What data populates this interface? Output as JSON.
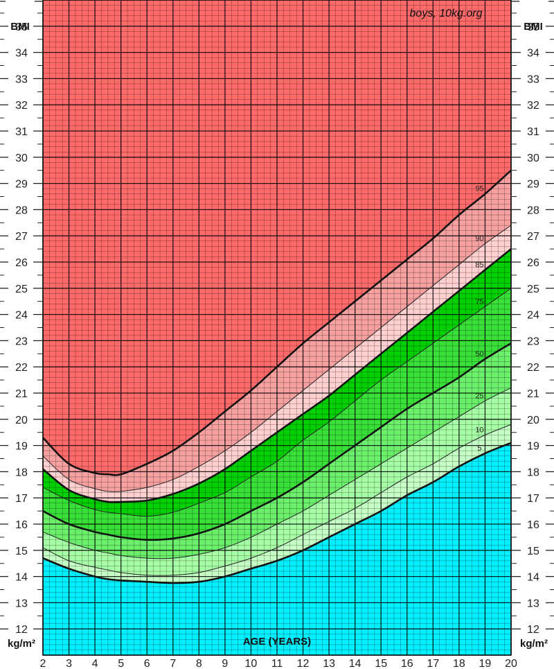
{
  "chart_data": {
    "type": "area",
    "watermark": "boys, 10kg.org",
    "ylabel_top": "BMI",
    "ylabel_bottom": "kg/m²",
    "xlabel": "AGE (YEARS)",
    "xlim": [
      2,
      20
    ],
    "ylim": [
      11,
      36
    ],
    "x_ticks": [
      "2",
      "3",
      "4",
      "5",
      "6",
      "7",
      "8",
      "9",
      "10",
      "11",
      "12",
      "13",
      "14",
      "15",
      "16",
      "17",
      "18",
      "19",
      "20"
    ],
    "y_ticks": [
      "12",
      "13",
      "14",
      "15",
      "16",
      "17",
      "18",
      "19",
      "20",
      "21",
      "22",
      "23",
      "24",
      "25",
      "26",
      "27",
      "28",
      "29",
      "30",
      "31",
      "32",
      "33",
      "34",
      "35"
    ],
    "grid": true,
    "x": [
      2,
      3,
      4,
      4.5,
      5,
      6,
      7,
      8,
      9,
      10,
      11,
      12,
      13,
      14,
      15,
      16,
      17,
      18,
      19,
      20
    ],
    "series": [
      {
        "name": "5",
        "values": [
          14.7,
          14.3,
          14.0,
          13.9,
          13.85,
          13.8,
          13.75,
          13.8,
          14.0,
          14.3,
          14.6,
          15.0,
          15.5,
          16.0,
          16.5,
          17.1,
          17.6,
          18.2,
          18.7,
          19.1
        ]
      },
      {
        "name": "10",
        "values": [
          15.1,
          14.6,
          14.35,
          14.25,
          14.15,
          14.05,
          14.05,
          14.15,
          14.4,
          14.7,
          15.1,
          15.6,
          16.1,
          16.6,
          17.2,
          17.8,
          18.3,
          18.9,
          19.4,
          19.8
        ]
      },
      {
        "name": "25",
        "values": [
          15.7,
          15.3,
          15.0,
          14.9,
          14.8,
          14.7,
          14.7,
          14.85,
          15.1,
          15.5,
          16.0,
          16.5,
          17.1,
          17.7,
          18.3,
          18.9,
          19.5,
          20.1,
          20.7,
          21.2
        ]
      },
      {
        "name": "50",
        "values": [
          16.5,
          16.0,
          15.7,
          15.6,
          15.5,
          15.4,
          15.45,
          15.65,
          16.0,
          16.5,
          17.0,
          17.6,
          18.3,
          19.0,
          19.7,
          20.4,
          21.0,
          21.6,
          22.3,
          22.9
        ]
      },
      {
        "name": "75",
        "values": [
          17.4,
          16.9,
          16.55,
          16.45,
          16.4,
          16.3,
          16.45,
          16.8,
          17.2,
          17.8,
          18.4,
          19.2,
          19.9,
          20.7,
          21.5,
          22.2,
          22.9,
          23.6,
          24.3,
          25.0
        ]
      },
      {
        "name": "85",
        "values": [
          18.1,
          17.3,
          16.95,
          16.85,
          16.85,
          16.9,
          17.15,
          17.55,
          18.1,
          18.8,
          19.5,
          20.2,
          20.9,
          21.7,
          22.5,
          23.3,
          24.1,
          24.9,
          25.7,
          26.5
        ]
      },
      {
        "name": "90",
        "values": [
          18.6,
          17.7,
          17.35,
          17.25,
          17.25,
          17.4,
          17.7,
          18.2,
          18.8,
          19.5,
          20.3,
          21.1,
          21.9,
          22.7,
          23.5,
          24.3,
          25.1,
          25.9,
          26.7,
          27.4
        ]
      },
      {
        "name": "95",
        "values": [
          19.3,
          18.3,
          17.95,
          17.9,
          17.9,
          18.3,
          18.8,
          19.5,
          20.3,
          21.1,
          22.0,
          22.9,
          23.7,
          24.5,
          25.3,
          26.1,
          26.9,
          27.8,
          28.6,
          29.5
        ]
      }
    ],
    "label_positions": [
      {
        "name": "5",
        "x": 19.0
      },
      {
        "name": "10",
        "x": 19.0
      },
      {
        "name": "25",
        "x": 19.0
      },
      {
        "name": "50",
        "x": 19.0
      },
      {
        "name": "75",
        "x": 19.0
      },
      {
        "name": "85",
        "x": 19.0
      },
      {
        "name": "90",
        "x": 19.0
      },
      {
        "name": "95",
        "x": 19.0
      }
    ],
    "colors": {
      "below_5": "#00f0ff",
      "p5_10": "#c6ffc6",
      "p10_25": "#a6ffa6",
      "p25_50": "#6cf06c",
      "p50_75": "#38e038",
      "p75_85": "#00d000",
      "p85_90": "#ffd0d0",
      "p90_95": "#f7a0a0",
      "above_95": "#ff6b6b",
      "thick_line": "#111111",
      "thin_line": "#222222"
    }
  }
}
